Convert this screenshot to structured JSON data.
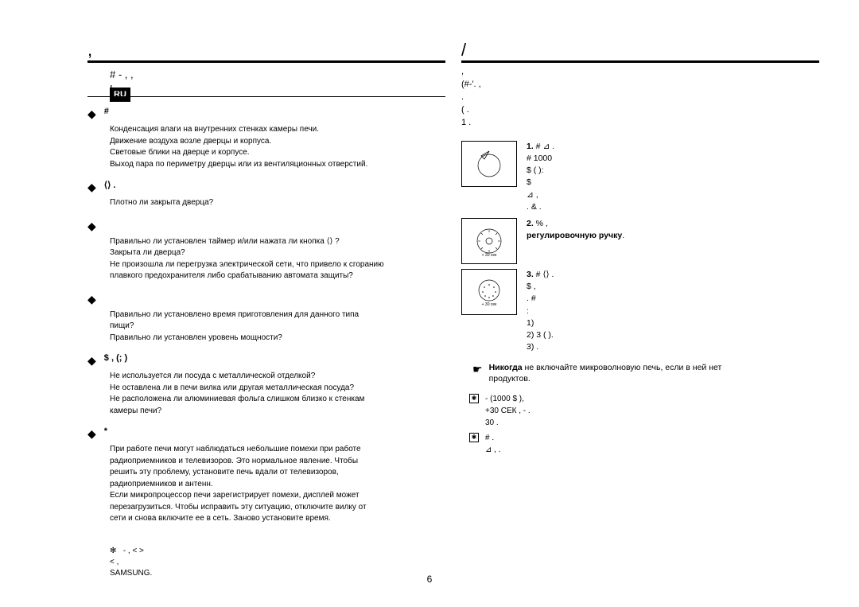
{
  "lang_badge": "RU",
  "page_number": "6",
  "left": {
    "heading1": "               ,",
    "heading2": "#                   -     ,               ,\n                          !     .",
    "bullets": [
      {
        "title": "#",
        "lines": "Конденсация влаги на внутренних стенках камеры печи.\nДвижение воздуха возле дверцы и корпуса.\nСветовые блики на дверце и корпусе.\nВыход пара по периметру дверцы или из вентиляционных отверстий."
      },
      {
        "title": "                                                   ⟨⟩ .",
        "lines": "Плотно ли закрыта дверца?"
      },
      {
        "title": "",
        "lines": "Правильно ли установлен таймер и/или нажата ли кнопка  ⟨⟩ ?\nЗакрыта ли дверца?\nНе произошла ли перегрузка электрической сети, что привело к сгоранию\nплавкого предохранителя либо срабатыванию автомата защиты?"
      },
      {
        "title": "",
        "lines": "Правильно ли установлено время приготовления для данного типа\nпищи?\nПравильно ли установлен уровень мощности?"
      },
      {
        "title": "$        ,                                (;                 )",
        "lines": "Не используется ли посуда с металлической отделкой?\nНе оставлена ли в печи вилка или другая металлическая посуда?\nНе расположена ли алюминиевая фольга слишком близко к стенкам\nкамеры печи?"
      },
      {
        "title": "                *",
        "lines": "При работе печи могут наблюдаться небольшие помехи при работе\nрадиоприемников и телевизоров. Это нормальное явление. Чтобы\nрешить эту проблему, установите печь вдали от телевизоров,\nрадиоприемников и антенн.\nЕсли микропроцессор печи зарегистрирует помехи, дисплей может\nперезагрузиться. Чтобы исправить эту ситуацию, отключите вилку от\nсети и снова включите ее в сеть. Заново установите время."
      }
    ],
    "footnote1": "             -            ,             <                  >\n            <                   ,\n                                                          SAMSUNG."
  },
  "right": {
    "heading_main": "             /",
    "heading_sub": "                                              ,\n(#-'.                         ,\n                 .\n(                                                                      .\n1                        .",
    "steps": [
      {
        "num": "1.",
        "body": "#             ⊿ .\n                      #                                  1000\n                      $   (                          ):\n                             $\n                                            ⊿                 ,\n                                  . &   ."
      },
      {
        "num": "2.",
        "body": "%                                ,\nрегулировочную ручку."
      },
      {
        "num": "3.",
        "body": "#               ⟨⟩ .\n                      $                              ,\n                                                   . #\n                                                                      :\n                            1)\n                            2)                3      (                       ).\n                            3)                                                ."
      }
    ],
    "warning_label": "Никогда",
    "warning_rest": " не включайте микроволновую печь, если в ней нет\nпродуктов.",
    "notes": [
      "-                                                    (1000 $     ),\n                 +30 СЕК           ,                     -            .\n                          30                                    .",
      "#                       .\n                 ⊿ ,                    ."
    ]
  }
}
